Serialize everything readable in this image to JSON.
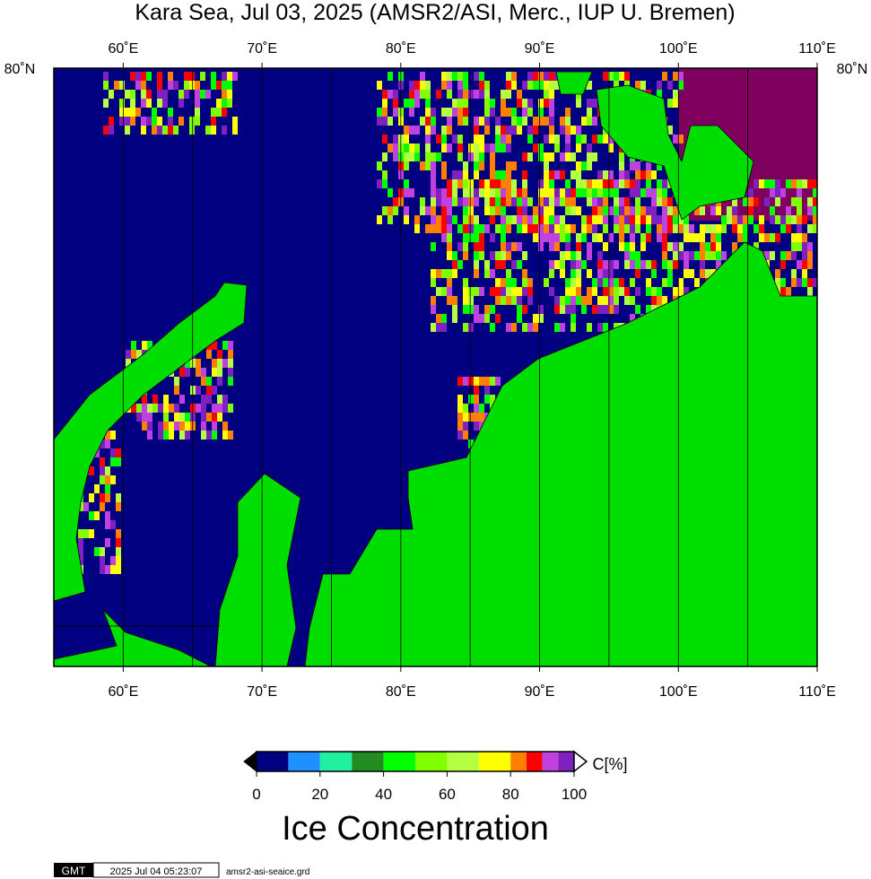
{
  "chart_data": {
    "type": "map",
    "title": "Kara Sea, Jul 03, 2025 (AMSR2/ASI, Merc., IUP U. Bremen)",
    "xlim": [
      55,
      110
    ],
    "xticks": [
      {
        "value": 60,
        "label": "60˚E"
      },
      {
        "value": 70,
        "label": "70˚E"
      },
      {
        "value": 80,
        "label": "80˚E"
      },
      {
        "value": 90,
        "label": "90˚E"
      },
      {
        "value": 100,
        "label": "100˚E"
      },
      {
        "value": 110,
        "label": "110˚E"
      }
    ],
    "xgrid": [
      60,
      65,
      70,
      75,
      80,
      85,
      90,
      95,
      100,
      105
    ],
    "lat_label": "80˚N",
    "colorbar": {
      "label": "Ice Concentration",
      "unit": "C[%]",
      "levels": [
        0,
        10,
        20,
        30,
        40,
        50,
        60,
        70,
        80,
        85,
        90,
        95,
        100
      ],
      "colors": [
        "#000080",
        "#1e90ff",
        "#20f0a0",
        "#228b22",
        "#00ff00",
        "#80ff00",
        "#b4ff40",
        "#ffff00",
        "#ff8000",
        "#ff0000",
        "#c040e0",
        "#8020c0"
      ],
      "ticks": [
        0,
        20,
        40,
        60,
        80,
        100
      ]
    },
    "footer": {
      "logo": "GMT",
      "timestamp": "2025 Jul 04 05:23:07",
      "file": "amsr2-asi-seaice.grd"
    }
  }
}
